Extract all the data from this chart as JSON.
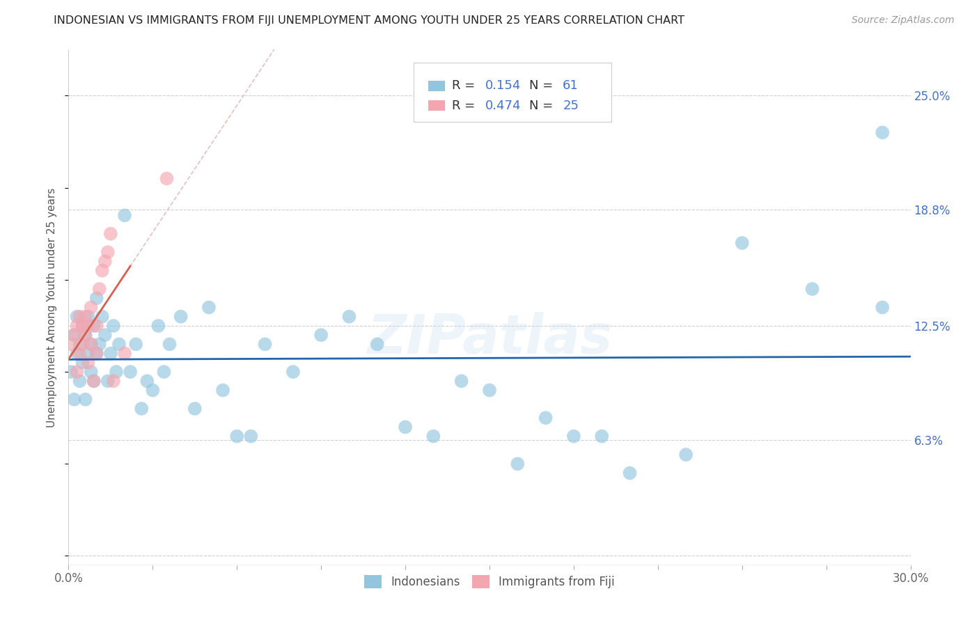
{
  "title": "INDONESIAN VS IMMIGRANTS FROM FIJI UNEMPLOYMENT AMONG YOUTH UNDER 25 YEARS CORRELATION CHART",
  "source": "Source: ZipAtlas.com",
  "ylabel": "Unemployment Among Youth under 25 years",
  "y_labels_right": [
    "6.3%",
    "12.5%",
    "18.8%",
    "25.0%"
  ],
  "y_ticks_right": [
    0.063,
    0.125,
    0.188,
    0.25
  ],
  "xlim": [
    0.0,
    0.3
  ],
  "ylim": [
    -0.005,
    0.275
  ],
  "legend1_label": "Indonesians",
  "legend2_label": "Immigrants from Fiji",
  "r1": 0.154,
  "n1": 61,
  "r2": 0.474,
  "n2": 25,
  "color_blue": "#92c5de",
  "color_pink": "#f4a6b0",
  "color_line_blue": "#2166ac",
  "color_line_pink": "#d6604d",
  "color_dashed": "#d9b2b5",
  "watermark": "ZIPatlas",
  "grid_color": "#d0d0d0",
  "background_color": "#ffffff",
  "indonesian_x": [
    0.001,
    0.002,
    0.002,
    0.003,
    0.003,
    0.004,
    0.004,
    0.005,
    0.005,
    0.006,
    0.006,
    0.007,
    0.007,
    0.008,
    0.008,
    0.009,
    0.009,
    0.01,
    0.01,
    0.011,
    0.012,
    0.013,
    0.014,
    0.015,
    0.016,
    0.017,
    0.018,
    0.02,
    0.022,
    0.024,
    0.026,
    0.028,
    0.03,
    0.032,
    0.034,
    0.036,
    0.04,
    0.045,
    0.05,
    0.055,
    0.06,
    0.065,
    0.07,
    0.08,
    0.09,
    0.1,
    0.11,
    0.12,
    0.13,
    0.14,
    0.15,
    0.16,
    0.17,
    0.18,
    0.19,
    0.2,
    0.22,
    0.24,
    0.265,
    0.29,
    0.29
  ],
  "indonesian_y": [
    0.1,
    0.085,
    0.12,
    0.11,
    0.13,
    0.115,
    0.095,
    0.125,
    0.105,
    0.12,
    0.085,
    0.11,
    0.13,
    0.1,
    0.115,
    0.095,
    0.125,
    0.14,
    0.11,
    0.115,
    0.13,
    0.12,
    0.095,
    0.11,
    0.125,
    0.1,
    0.115,
    0.185,
    0.1,
    0.115,
    0.08,
    0.095,
    0.09,
    0.125,
    0.1,
    0.115,
    0.13,
    0.08,
    0.135,
    0.09,
    0.065,
    0.065,
    0.115,
    0.1,
    0.12,
    0.13,
    0.115,
    0.07,
    0.065,
    0.095,
    0.09,
    0.05,
    0.075,
    0.065,
    0.065,
    0.045,
    0.055,
    0.17,
    0.145,
    0.135,
    0.23
  ],
  "fiji_x": [
    0.001,
    0.002,
    0.003,
    0.003,
    0.004,
    0.004,
    0.005,
    0.005,
    0.006,
    0.006,
    0.007,
    0.007,
    0.008,
    0.008,
    0.009,
    0.01,
    0.01,
    0.011,
    0.012,
    0.013,
    0.014,
    0.015,
    0.016,
    0.02,
    0.035
  ],
  "fiji_y": [
    0.115,
    0.12,
    0.1,
    0.125,
    0.11,
    0.13,
    0.115,
    0.125,
    0.12,
    0.13,
    0.105,
    0.125,
    0.115,
    0.135,
    0.095,
    0.11,
    0.125,
    0.145,
    0.155,
    0.16,
    0.165,
    0.175,
    0.095,
    0.11,
    0.205
  ]
}
